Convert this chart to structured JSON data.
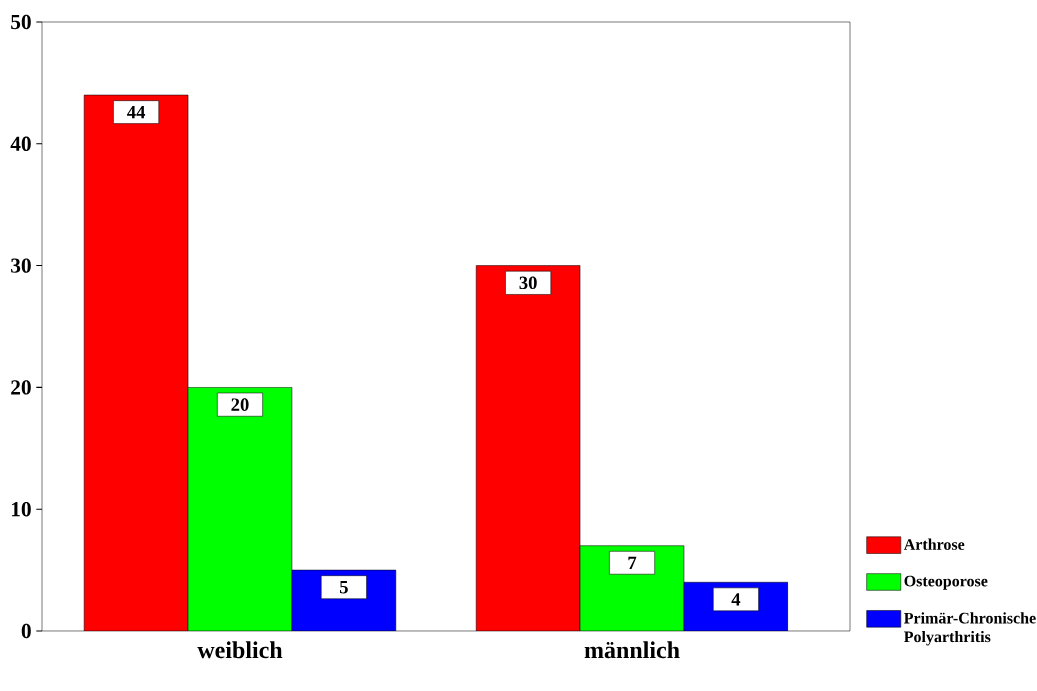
{
  "chart_data": {
    "type": "bar",
    "categories": [
      "weiblich",
      "männlich"
    ],
    "series": [
      {
        "name": "Arthrose",
        "color": "#ff0000",
        "values": [
          44,
          30
        ]
      },
      {
        "name": "Osteoporose",
        "color": "#00ff00",
        "values": [
          20,
          7
        ]
      },
      {
        "name": "Primär-Chronische Polyarthritis",
        "color": "#0000ff",
        "values": [
          5,
          4
        ]
      }
    ],
    "ylim": [
      0,
      50
    ],
    "yticks": [
      0,
      10,
      20,
      30,
      40,
      50
    ],
    "grid": false,
    "legend": "bottom right",
    "data_labels": true
  }
}
